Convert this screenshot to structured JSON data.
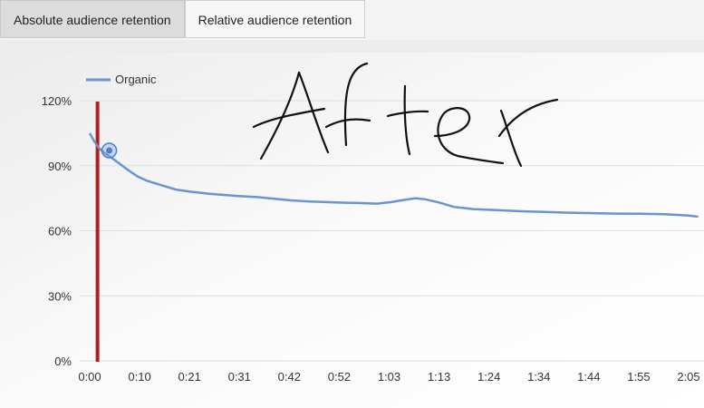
{
  "tabs": [
    {
      "label": "Absolute audience retention",
      "active": true
    },
    {
      "label": "Relative audience retention",
      "active": false
    }
  ],
  "annotation_text": "After",
  "chart_data": {
    "type": "line",
    "title": "",
    "xlabel": "",
    "ylabel": "",
    "ylim": [
      0,
      120
    ],
    "y_ticks": [
      "0%",
      "30%",
      "60%",
      "90%",
      "120%"
    ],
    "x_ticks": [
      "0:00",
      "0:10",
      "0:21",
      "0:31",
      "0:42",
      "0:52",
      "1:03",
      "1:13",
      "1:24",
      "1:34",
      "1:44",
      "1:55",
      "2:05"
    ],
    "legend": {
      "position": "top-left",
      "entries": [
        "Organic"
      ]
    },
    "grid": true,
    "series": [
      {
        "name": "Organic",
        "color": "#6b93cf",
        "x": [
          0,
          1,
          2,
          3,
          5,
          8,
          10,
          12,
          15,
          18,
          21,
          25,
          31,
          35,
          42,
          46,
          52,
          56,
          60,
          63,
          65,
          68,
          70,
          73,
          76,
          80,
          85,
          90,
          95,
          100,
          105,
          110,
          115,
          120,
          125,
          127
        ],
        "y": [
          105,
          101,
          98,
          96,
          93,
          88,
          85,
          83,
          81,
          79,
          78,
          77,
          76,
          75.5,
          74,
          73.5,
          73,
          72.8,
          72.5,
          73.2,
          74,
          75,
          74.5,
          73,
          71,
          70,
          69.5,
          69,
          68.7,
          68.3,
          68.1,
          67.9,
          67.8,
          67.6,
          67,
          66.5
        ]
      }
    ],
    "current_marker": {
      "x": 2,
      "y": 97,
      "color": "#4a7fcf"
    },
    "playhead": {
      "x": 0.5,
      "color": "#b71c1c"
    }
  }
}
